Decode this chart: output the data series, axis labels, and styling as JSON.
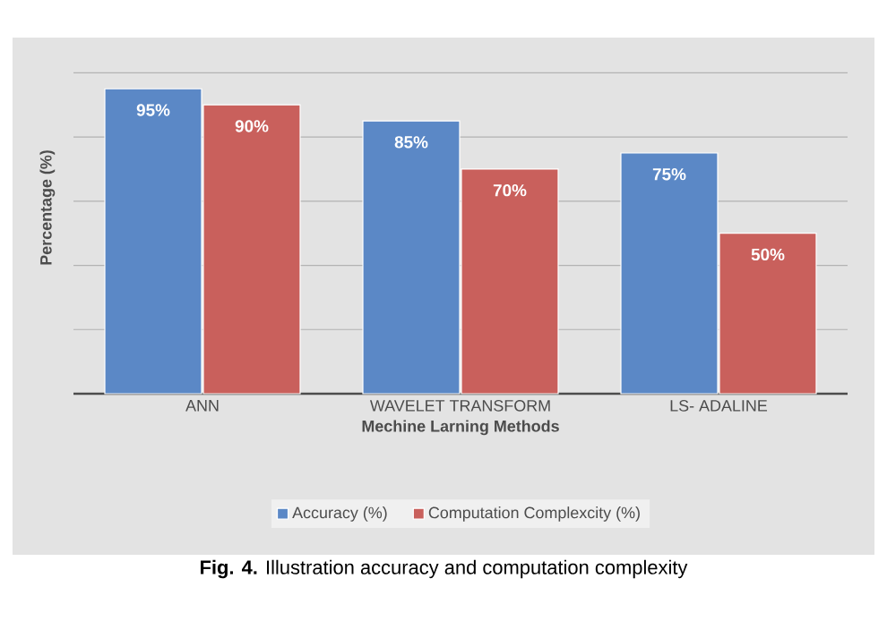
{
  "chart_data": {
    "type": "bar",
    "xlabel": "Mechine Larning Methods",
    "ylabel": "Percentage (%)",
    "categories": [
      "ANN",
      "WAVELET TRANSFORM",
      "LS- ADALINE"
    ],
    "series": [
      {
        "name": "Accuracy (%)",
        "color": "#5b88c6",
        "values": [
          95,
          85,
          75
        ],
        "value_labels": [
          "95%",
          "85%",
          "75%"
        ]
      },
      {
        "name": "Computation Complexcity (%)",
        "color": "#c9605c",
        "values": [
          90,
          70,
          50
        ],
        "value_labels": [
          "90%",
          "70%",
          "50%"
        ]
      }
    ],
    "data_labels": false,
    "tick_labels": "x",
    "grid": "y",
    "legend": "bottom",
    "annotations": [
      "**Fig. 4.** Illustration accuracy and computation complexity"
    ]
  }
}
